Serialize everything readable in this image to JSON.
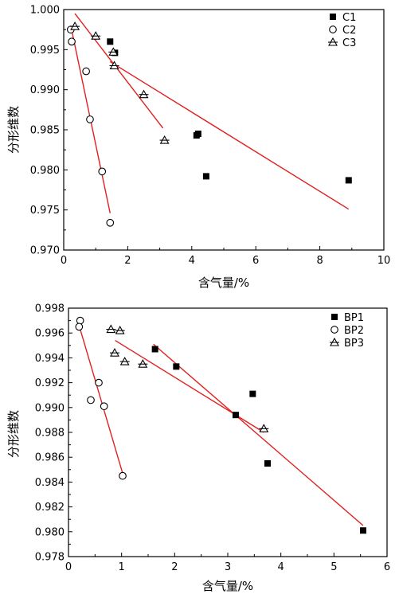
{
  "chart_data": [
    {
      "type": "scatter",
      "xlabel": "含气量/%",
      "ylabel": "分形维数",
      "xlim": [
        0,
        10
      ],
      "ylim": [
        0.97,
        1.0
      ],
      "xticks": [
        "0",
        "2",
        "4",
        "6",
        "8",
        "10"
      ],
      "yticks": [
        "0.970",
        "0.975",
        "0.980",
        "0.985",
        "0.990",
        "0.995",
        "1.000"
      ],
      "legend_position": "top-right",
      "series": [
        {
          "name": "C1",
          "marker": "filled-square",
          "points": [
            [
              1.45,
              0.996
            ],
            [
              1.6,
              0.9946
            ],
            [
              4.2,
              0.9845
            ],
            [
              4.15,
              0.9843
            ],
            [
              4.45,
              0.9792
            ],
            [
              8.9,
              0.9787
            ]
          ],
          "trendline": [
            [
              1.45,
              0.9935
            ],
            [
              8.9,
              0.9751
            ]
          ]
        },
        {
          "name": "C2",
          "marker": "open-circle",
          "points": [
            [
              0.22,
              0.9975
            ],
            [
              0.25,
              0.996
            ],
            [
              0.7,
              0.9923
            ],
            [
              0.82,
              0.9863
            ],
            [
              1.2,
              0.9798
            ],
            [
              1.45,
              0.9734
            ]
          ],
          "trendline": [
            [
              0.22,
              0.998
            ],
            [
              1.45,
              0.9746
            ]
          ]
        },
        {
          "name": "C3",
          "marker": "open-triangle-cross",
          "points": [
            [
              0.35,
              0.9979
            ],
            [
              1.0,
              0.9967
            ],
            [
              1.55,
              0.9947
            ],
            [
              1.58,
              0.993
            ],
            [
              2.5,
              0.9894
            ],
            [
              3.15,
              0.9837
            ]
          ],
          "trendline": [
            [
              0.35,
              0.9995
            ],
            [
              3.1,
              0.9852
            ]
          ]
        }
      ]
    },
    {
      "type": "scatter",
      "xlabel": "含气量/%",
      "ylabel": "分形维数",
      "xlim": [
        0,
        6
      ],
      "ylim": [
        0.978,
        0.998
      ],
      "xticks": [
        "0",
        "1",
        "2",
        "3",
        "4",
        "5",
        "6"
      ],
      "yticks": [
        "0.978",
        "0.980",
        "0.982",
        "0.984",
        "0.986",
        "0.988",
        "0.990",
        "0.992",
        "0.994",
        "0.996",
        "0.998"
      ],
      "legend_position": "top-right",
      "series": [
        {
          "name": "BP1",
          "marker": "filled-square",
          "points": [
            [
              1.63,
              0.9947
            ],
            [
              2.03,
              0.9933
            ],
            [
              3.15,
              0.9894
            ],
            [
              3.47,
              0.9911
            ],
            [
              3.75,
              0.9855
            ],
            [
              5.55,
              0.9801
            ]
          ],
          "trendline": [
            [
              1.6,
              0.9951
            ],
            [
              5.55,
              0.9805
            ]
          ]
        },
        {
          "name": "BP2",
          "marker": "open-circle",
          "points": [
            [
              0.22,
              0.997
            ],
            [
              0.2,
              0.9965
            ],
            [
              0.57,
              0.992
            ],
            [
              0.42,
              0.9906
            ],
            [
              0.67,
              0.9901
            ],
            [
              1.02,
              0.9845
            ]
          ],
          "trendline": [
            [
              0.2,
              0.9966
            ],
            [
              1.02,
              0.9847
            ]
          ]
        },
        {
          "name": "BP3",
          "marker": "open-triangle-cross",
          "points": [
            [
              0.8,
              0.9963
            ],
            [
              0.97,
              0.9962
            ],
            [
              0.87,
              0.9944
            ],
            [
              1.06,
              0.9937
            ],
            [
              1.4,
              0.9935
            ],
            [
              3.68,
              0.9883
            ]
          ],
          "trendline": [
            [
              0.88,
              0.9954
            ],
            [
              3.68,
              0.988
            ]
          ]
        }
      ]
    }
  ]
}
